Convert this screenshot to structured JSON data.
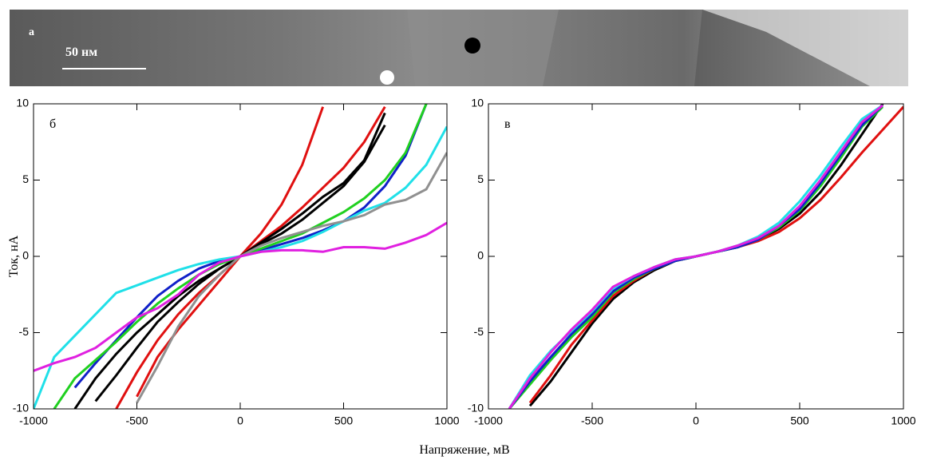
{
  "image_panel": {
    "label": "а",
    "scale_bar": "50 нм"
  },
  "chart_data": [
    {
      "type": "line",
      "label": "б",
      "ylabel": "Ток, нА",
      "xlabel": "Напряжение, мВ",
      "xlim": [
        -1000,
        1000
      ],
      "ylim": [
        -10,
        10
      ],
      "xticks": [
        -1000,
        -500,
        0,
        500,
        1000
      ],
      "yticks": [
        -10,
        -5,
        0,
        5,
        10
      ],
      "x": [
        -1000,
        -900,
        -800,
        -700,
        -600,
        -500,
        -400,
        -300,
        -200,
        -100,
        0,
        100,
        200,
        300,
        400,
        500,
        600,
        700,
        800,
        900,
        1000
      ],
      "series": [
        {
          "color": "#e01010",
          "values": [
            null,
            null,
            null,
            null,
            null,
            -9.2,
            -6.6,
            -4.8,
            -3.2,
            -1.6,
            0,
            1.5,
            3.4,
            6,
            9.8,
            null,
            null,
            null,
            null,
            null,
            null
          ]
        },
        {
          "color": "#e01010",
          "values": [
            null,
            null,
            null,
            null,
            -10,
            -7.6,
            -5.5,
            -3.8,
            -2.4,
            -1.2,
            0,
            1,
            2,
            3.2,
            4.5,
            5.8,
            7.5,
            9.8,
            null,
            null,
            null
          ]
        },
        {
          "color": "#000000",
          "values": [
            null,
            null,
            -10,
            -8,
            -6.4,
            -5,
            -3.8,
            -2.6,
            -1.6,
            -0.8,
            0,
            0.9,
            1.8,
            2.8,
            3.9,
            4.8,
            6.3,
            9.4,
            null,
            null,
            null
          ]
        },
        {
          "color": "#000000",
          "values": [
            null,
            null,
            null,
            -9.5,
            -7.8,
            -6,
            -4.3,
            -3,
            -1.8,
            -0.8,
            0,
            0.8,
            1.5,
            2.4,
            3.5,
            4.6,
            6.2,
            8.6,
            null,
            null,
            null
          ]
        },
        {
          "color": "#1020c8",
          "values": [
            null,
            null,
            -8.6,
            -7,
            -5.5,
            -4,
            -2.6,
            -1.6,
            -0.8,
            -0.3,
            0,
            0.4,
            0.8,
            1.2,
            1.7,
            2.3,
            3.2,
            4.6,
            6.6,
            10,
            null
          ]
        },
        {
          "color": "#20d020",
          "values": [
            null,
            -10,
            -8,
            -6.8,
            -5.6,
            -4.3,
            -3.1,
            -2.1,
            -1.2,
            -0.5,
            0,
            0.5,
            1,
            1.5,
            2.2,
            2.9,
            3.8,
            5,
            6.8,
            10,
            null
          ]
        },
        {
          "color": "#20e0e8",
          "values": [
            -10,
            -6.6,
            -5.2,
            -3.8,
            -2.4,
            -1.9,
            -1.4,
            -0.9,
            -0.5,
            -0.2,
            0,
            0.3,
            0.6,
            1,
            1.6,
            2.3,
            3,
            3.5,
            4.5,
            6,
            8.5
          ]
        },
        {
          "color": "#909090",
          "values": [
            null,
            null,
            null,
            null,
            null,
            -9.6,
            -7.2,
            -4.6,
            -2.6,
            -1.2,
            0,
            0.7,
            1.2,
            1.6,
            2,
            2.3,
            2.7,
            3.4,
            3.7,
            4.4,
            6.8
          ]
        },
        {
          "color": "#e020e0",
          "values": [
            -7.5,
            -7,
            -6.6,
            -6,
            -5,
            -4,
            -3.4,
            -2.5,
            -1.2,
            -0.4,
            0,
            0.3,
            0.4,
            0.4,
            0.3,
            0.6,
            0.6,
            0.5,
            0.9,
            1.4,
            2.2
          ]
        }
      ]
    },
    {
      "type": "line",
      "label": "в",
      "xlim": [
        -1000,
        1000
      ],
      "ylim": [
        -10,
        10
      ],
      "xticks": [
        -1000,
        -500,
        0,
        500,
        1000
      ],
      "yticks": [
        -10,
        -5,
        0,
        5,
        10
      ],
      "x": [
        -1000,
        -900,
        -800,
        -700,
        -600,
        -500,
        -400,
        -300,
        -200,
        -100,
        0,
        100,
        200,
        300,
        400,
        500,
        600,
        700,
        800,
        900,
        1000
      ],
      "series": [
        {
          "color": "#000000",
          "values": [
            null,
            null,
            -9.8,
            -8.2,
            -6.3,
            -4.4,
            -2.8,
            -1.7,
            -0.9,
            -0.3,
            0,
            0.3,
            0.6,
            1.1,
            1.8,
            2.8,
            4.2,
            6,
            8,
            10,
            null
          ]
        },
        {
          "color": "#e01010",
          "values": [
            null,
            null,
            -9.6,
            -7.8,
            -5.8,
            -4.2,
            -2.6,
            -1.6,
            -0.8,
            -0.3,
            0,
            0.3,
            0.6,
            1,
            1.6,
            2.5,
            3.7,
            5.2,
            6.8,
            8.3,
            9.8
          ]
        },
        {
          "color": "#20d020",
          "values": [
            null,
            -10,
            -8.4,
            -6.8,
            -5.3,
            -4,
            -2.4,
            -1.5,
            -0.8,
            -0.3,
            0,
            0.3,
            0.6,
            1.1,
            1.9,
            3,
            4.6,
            6.5,
            8.5,
            9.8,
            null
          ]
        },
        {
          "color": "#1020c8",
          "values": [
            null,
            -10,
            -8.2,
            -6.6,
            -5.1,
            -3.8,
            -2.3,
            -1.4,
            -0.8,
            -0.3,
            0,
            0.3,
            0.6,
            1.1,
            2,
            3.1,
            4.8,
            6.7,
            8.6,
            9.9,
            null
          ]
        },
        {
          "color": "#20e0e8",
          "values": [
            null,
            -10,
            -7.8,
            -6.2,
            -4.9,
            -3.6,
            -2.1,
            -1.3,
            -0.7,
            -0.2,
            0,
            0.3,
            0.7,
            1.3,
            2.2,
            3.6,
            5.3,
            7.2,
            9,
            9.9,
            null
          ]
        },
        {
          "color": "#e020e0",
          "values": [
            null,
            -10,
            -8,
            -6.3,
            -4.8,
            -3.5,
            -2,
            -1.3,
            -0.7,
            -0.2,
            0,
            0.3,
            0.7,
            1.2,
            2,
            3.3,
            5,
            6.9,
            8.8,
            9.9,
            null
          ]
        }
      ]
    }
  ]
}
